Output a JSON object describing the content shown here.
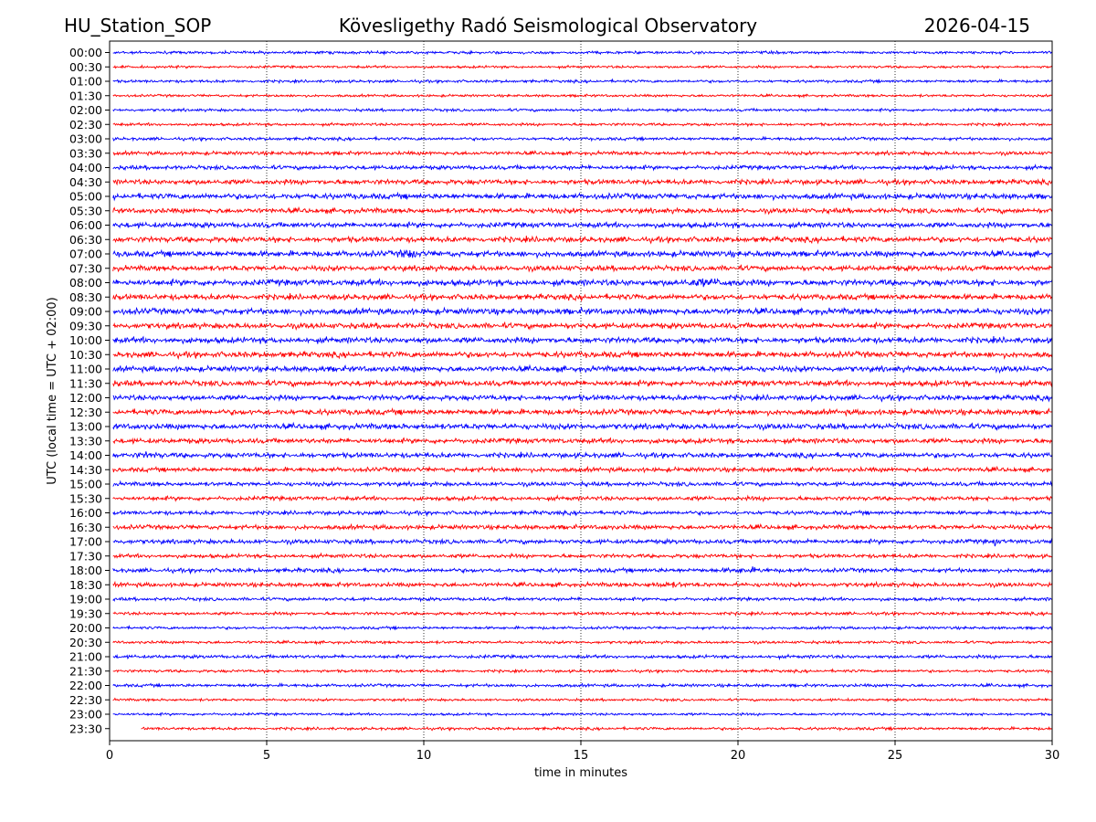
{
  "header": {
    "station": "HU_Station_SOP",
    "title": "Kövesligethy Radó Seismological Observatory",
    "date": "2026-04-15"
  },
  "chart_data": {
    "type": "line",
    "title": "Kövesligethy Radó Seismological Observatory",
    "xlabel": "time in minutes",
    "ylabel": "UTC (local time = UTC + 02:00)",
    "xlim": [
      0,
      30
    ],
    "xticks": [
      0,
      5,
      10,
      15,
      20,
      25,
      30
    ],
    "grid": "vertical dotted at 5-minute ticks",
    "series_colors": [
      "#0000ff",
      "#ff0000"
    ],
    "rows": [
      "00:00",
      "00:30",
      "01:00",
      "01:30",
      "02:00",
      "02:30",
      "03:00",
      "03:30",
      "04:00",
      "04:30",
      "05:00",
      "05:30",
      "06:00",
      "06:30",
      "07:00",
      "07:30",
      "08:00",
      "08:30",
      "09:00",
      "09:30",
      "10:00",
      "10:30",
      "11:00",
      "11:30",
      "12:00",
      "12:30",
      "13:00",
      "13:30",
      "14:00",
      "14:30",
      "15:00",
      "15:30",
      "16:00",
      "16:30",
      "17:00",
      "17:30",
      "18:00",
      "18:30",
      "19:00",
      "19:30",
      "20:00",
      "20:30",
      "21:00",
      "21:30",
      "22:00",
      "22:30",
      "23:00",
      "23:30"
    ],
    "noise_level": [
      1.0,
      0.9,
      1.0,
      0.9,
      1.0,
      1.0,
      1.1,
      1.3,
      1.5,
      1.8,
      2.0,
      1.8,
      1.9,
      2.0,
      2.1,
      1.9,
      2.2,
      2.0,
      2.2,
      2.0,
      2.1,
      2.1,
      2.0,
      2.0,
      1.9,
      2.0,
      2.0,
      1.8,
      1.8,
      1.6,
      1.5,
      1.5,
      1.4,
      1.6,
      1.6,
      1.4,
      1.5,
      1.5,
      1.2,
      1.1,
      1.0,
      1.0,
      1.2,
      1.0,
      1.1,
      0.9,
      0.9,
      1.0
    ],
    "events": [
      {
        "row": "07:00",
        "start_min": 9.1,
        "end_min": 10.0,
        "amplitude": 4.5
      },
      {
        "row": "07:00",
        "start_min": 12.7,
        "end_min": 13.1,
        "amplitude": 2.5
      },
      {
        "row": "08:00",
        "start_min": 17.0,
        "end_min": 21.0,
        "amplitude": 3.5
      },
      {
        "row": "14:00",
        "start_min": 0.5,
        "end_min": 2.0,
        "amplitude": 3.0
      },
      {
        "row": "13:00",
        "start_min": 0.8,
        "end_min": 1.6,
        "amplitude": 2.5
      },
      {
        "row": "16:30",
        "start_min": 15.7,
        "end_min": 16.0,
        "amplitude": 2.5
      },
      {
        "row": "17:00",
        "start_min": 28.1,
        "end_min": 28.3,
        "amplitude": 4.0
      },
      {
        "row": "18:00",
        "start_min": 19.0,
        "end_min": 21.5,
        "amplitude": 2.5
      },
      {
        "row": "18:30",
        "start_min": 16.5,
        "end_min": 19.0,
        "amplitude": 2.5
      },
      {
        "row": "06:30",
        "start_min": 12.5,
        "end_min": 12.8,
        "amplitude": 2.0
      },
      {
        "row": "11:30",
        "start_min": 26.2,
        "end_min": 26.5,
        "amplitude": 2.5
      }
    ]
  }
}
